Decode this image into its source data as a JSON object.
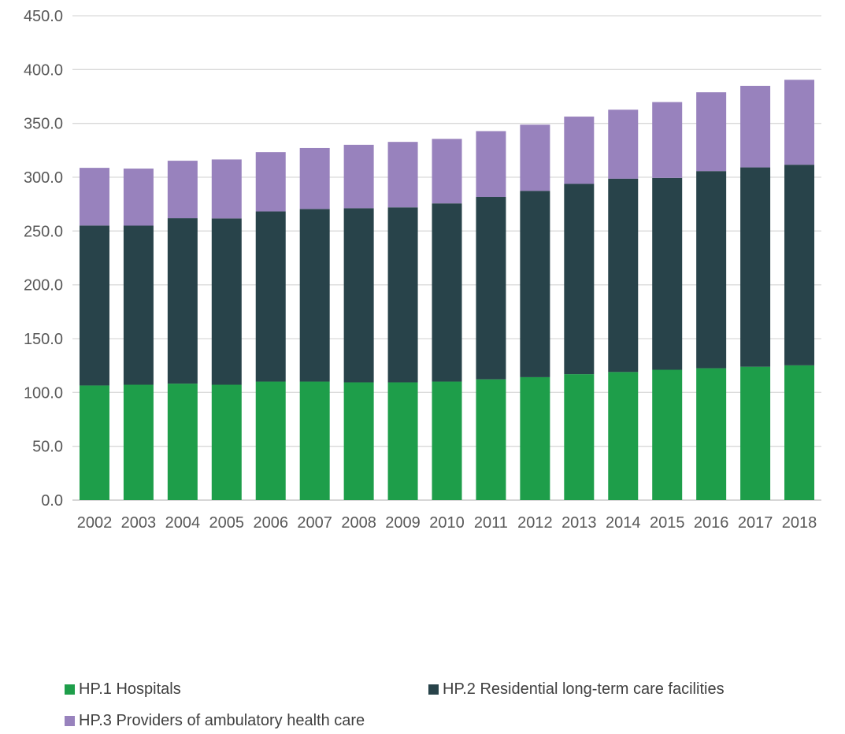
{
  "chart_data": {
    "type": "bar",
    "stacked": true,
    "title": "",
    "xlabel": "",
    "ylabel": "",
    "ylim": [
      0,
      450
    ],
    "ytick_step": 50,
    "ytick_labels": [
      "0.0",
      "50.0",
      "100.0",
      "150.0",
      "200.0",
      "250.0",
      "300.0",
      "350.0",
      "400.0",
      "450.0"
    ],
    "grid": true,
    "legend_position": "bottom",
    "categories": [
      "2002",
      "2003",
      "2004",
      "2005",
      "2006",
      "2007",
      "2008",
      "2009",
      "2010",
      "2011",
      "2012",
      "2013",
      "2014",
      "2015",
      "2016",
      "2017",
      "2018"
    ],
    "series": [
      {
        "name": "HP.1 Hospitals",
        "color": "#1e9e4a",
        "values": [
          106.5,
          107.2,
          108.2,
          107.2,
          110.1,
          110.1,
          109.4,
          109.4,
          110.1,
          112.2,
          114.2,
          117.0,
          119.0,
          121.1,
          122.5,
          123.9,
          125.2
        ]
      },
      {
        "name": "HP.2 Residential long-term care facilities",
        "color": "#28434a",
        "values": [
          148.6,
          147.8,
          153.7,
          154.5,
          158.1,
          160.4,
          161.8,
          162.6,
          165.6,
          169.5,
          173.1,
          176.8,
          179.6,
          178.3,
          183.2,
          185.2,
          186.4
        ]
      },
      {
        "name": "HP.3 Providers of ambulatory health care",
        "color": "#9882bd",
        "values": [
          53.6,
          53.0,
          53.4,
          54.8,
          55.1,
          56.6,
          58.9,
          60.8,
          59.9,
          61.1,
          61.5,
          62.5,
          64.1,
          70.4,
          73.2,
          75.8,
          78.9
        ]
      }
    ]
  }
}
